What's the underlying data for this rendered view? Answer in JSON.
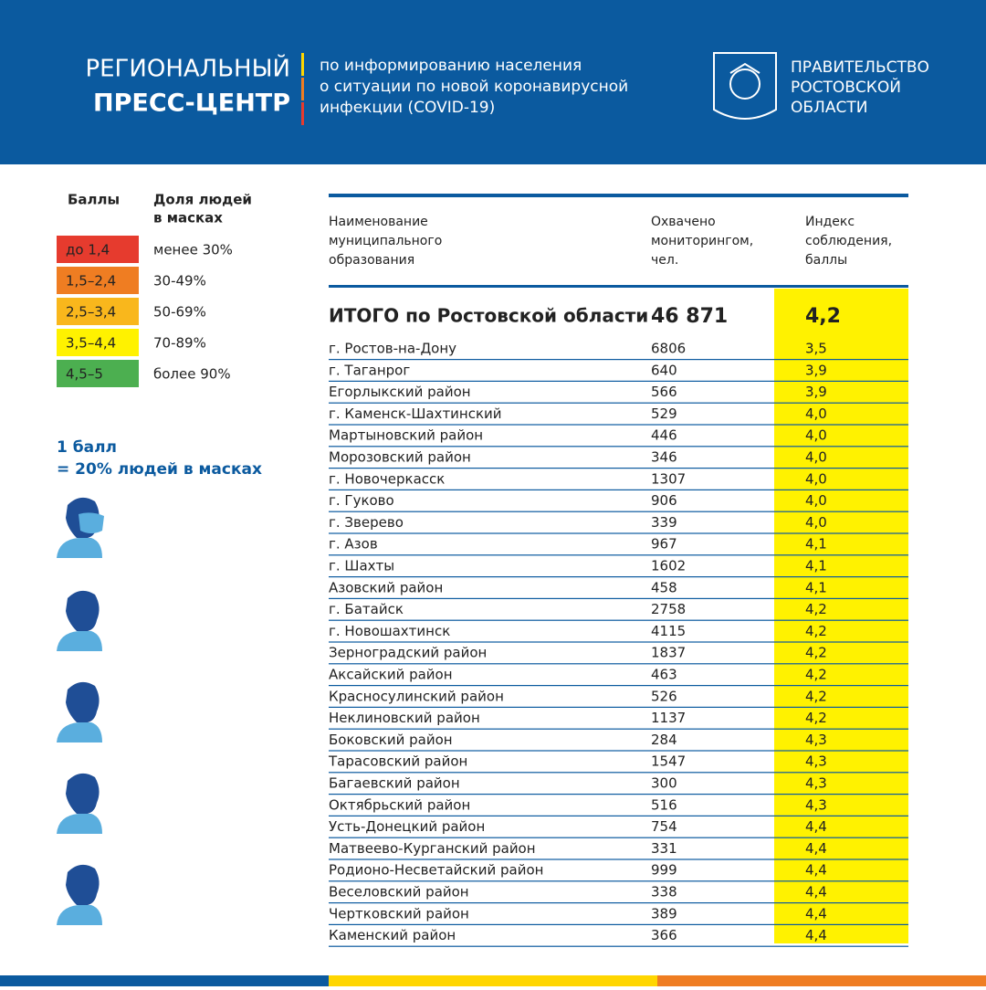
{
  "header": {
    "title_line1": "РЕГИОНАЛЬНЫЙ",
    "title_line2": "ПРЕСС-ЦЕНТР",
    "subtitle": [
      "по информированию населения",
      "о ситуации по новой коронавирусной",
      "инфекции (COVID-19)"
    ],
    "org": [
      "ПРАВИТЕЛЬСТВО",
      "РОСТОВСКОЙ",
      "ОБЛАСТИ"
    ]
  },
  "legend": {
    "headers": [
      "Баллы",
      [
        "Доля людей",
        "в масках"
      ]
    ],
    "items": [
      {
        "range": "до 1,4",
        "share": "менее 30%",
        "color": "#e63b2e"
      },
      {
        "range": "1,5–2,4",
        "share": "30-49%",
        "color": "#ef7d22"
      },
      {
        "range": "2,5–3,4",
        "share": "50-69%",
        "color": "#f9b71c"
      },
      {
        "range": "3,5–4,4",
        "share": "70-89%",
        "color": "#fff200"
      },
      {
        "range": "4,5–5",
        "share": "более 90%",
        "color": "#4caf50"
      }
    ]
  },
  "note": [
    "1 балл",
    "= 20% людей в масках"
  ],
  "table": {
    "columns": [
      [
        "Наименование",
        "муниципального",
        "образования"
      ],
      [
        "Охвачено",
        "мониторингом,",
        "чел."
      ],
      [
        "Индекс",
        "соблюдения,",
        "баллы"
      ]
    ],
    "total": [
      "ИТОГО по Ростовской области",
      "46 871",
      "4,2"
    ],
    "rows": [
      [
        "г. Ростов-на-Дону",
        "6806",
        "3,5"
      ],
      [
        "г. Таганрог",
        "640",
        "3,9"
      ],
      [
        "Егорлыкский район",
        "566",
        "3,9"
      ],
      [
        "г. Каменск-Шахтинский",
        "529",
        "4,0"
      ],
      [
        "Мартыновский район",
        "446",
        "4,0"
      ],
      [
        "Морозовский район",
        "346",
        "4,0"
      ],
      [
        "г. Новочеркасск",
        "1307",
        "4,0"
      ],
      [
        "г. Гуково",
        "906",
        "4,0"
      ],
      [
        "г. Зверево",
        "339",
        "4,0"
      ],
      [
        "г. Азов",
        "967",
        "4,1"
      ],
      [
        "г. Шахты",
        "1602",
        "4,1"
      ],
      [
        "Азовский район",
        "458",
        "4,1"
      ],
      [
        "г. Батайск",
        "2758",
        "4,2"
      ],
      [
        "г. Новошахтинск",
        "4115",
        "4,2"
      ],
      [
        "Зерноградский район",
        "1837",
        "4,2"
      ],
      [
        "Аксайский район",
        "463",
        "4,2"
      ],
      [
        "Красносулинский район",
        "526",
        "4,2"
      ],
      [
        "Неклиновский район",
        "1137",
        "4,2"
      ],
      [
        "Боковский район",
        "284",
        "4,3"
      ],
      [
        "Тарасовский район",
        "1547",
        "4,3"
      ],
      [
        "Багаевский район",
        "300",
        "4,3"
      ],
      [
        "Октябрьский район",
        "516",
        "4,3"
      ],
      [
        "Усть-Донецкий район",
        "754",
        "4,4"
      ],
      [
        "Матвеево-Курганский район",
        "331",
        "4,4"
      ],
      [
        "Родионо-Несветайский район",
        "999",
        "4,4"
      ],
      [
        "Веселовский район",
        "338",
        "4,4"
      ],
      [
        "Чертковский район",
        "389",
        "4,4"
      ],
      [
        "Каменский район",
        "366",
        "4,4"
      ]
    ]
  }
}
